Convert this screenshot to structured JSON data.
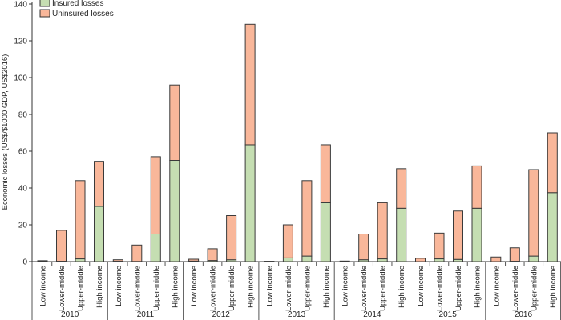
{
  "chart_data": {
    "type": "bar",
    "stacked": true,
    "title": "",
    "ylabel": "Economic losses (US$/$1000 GDP, US$2016)",
    "xlabel": "",
    "ylim": [
      0,
      140
    ],
    "yticks": [
      0,
      20,
      40,
      60,
      80,
      100,
      120,
      140
    ],
    "grid": false,
    "legend_position": "top-left",
    "income_groups": [
      "Low income",
      "Lower-middle",
      "Upper-middle",
      "High income"
    ],
    "years": [
      "2010",
      "2011",
      "2012",
      "2013",
      "2014",
      "2015",
      "2016"
    ],
    "series": [
      {
        "name": "Insured losses",
        "color": "#c5deb2",
        "values": [
          [
            0.1,
            0.2,
            1.5,
            30
          ],
          [
            0.2,
            0.1,
            15,
            55
          ],
          [
            0.3,
            0.6,
            1,
            63.5
          ],
          [
            0,
            2,
            3,
            32
          ],
          [
            0,
            1,
            1.5,
            29
          ],
          [
            0,
            1.5,
            1.2,
            29
          ],
          [
            0,
            0.2,
            3,
            37.5
          ]
        ]
      },
      {
        "name": "Uninsured losses",
        "color": "#f9b79a",
        "values": [
          [
            0.4,
            16.8,
            42.5,
            24.5
          ],
          [
            0.8,
            8.9,
            42,
            41
          ],
          [
            1,
            6.4,
            24,
            65.5
          ],
          [
            0.2,
            18,
            41,
            31.5
          ],
          [
            0.3,
            14,
            30.5,
            21.5
          ],
          [
            1.8,
            14,
            26.3,
            23
          ],
          [
            2.5,
            7.3,
            47,
            32.5
          ]
        ]
      }
    ]
  }
}
